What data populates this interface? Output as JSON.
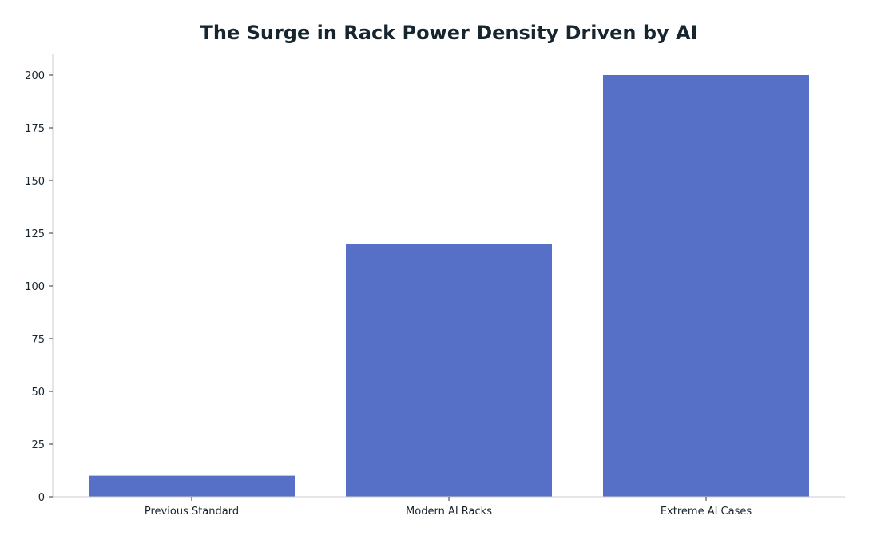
{
  "chart_data": {
    "type": "bar",
    "title": "The Surge in Rack Power Density Driven by AI",
    "xlabel": "",
    "ylabel": "",
    "categories": [
      "Previous Standard",
      "Modern AI Racks",
      "Extreme AI Cases"
    ],
    "values": [
      10,
      120,
      200
    ],
    "ylim": [
      0,
      210
    ],
    "yticks": [
      0,
      25,
      50,
      75,
      100,
      125,
      150,
      175,
      200
    ],
    "grid": false,
    "legend": "none",
    "colors": {
      "bar": "#5570c6",
      "title": "#17252f",
      "text": "#17252f",
      "axis": "#cccccc"
    }
  }
}
